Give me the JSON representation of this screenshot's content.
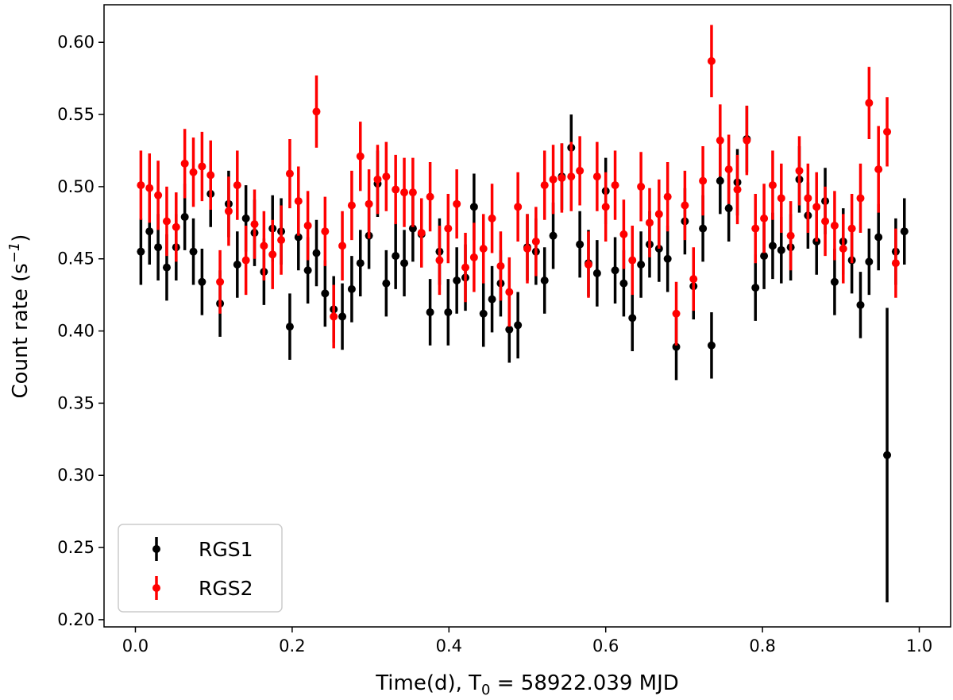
{
  "chart_data": {
    "type": "scatter",
    "title": "",
    "xlabel_text": "Time(d), T",
    "xlabel_subscript": "0",
    "xlabel_value": " = 58922.039 MJD",
    "ylabel_text": "Count rate  (s",
    "ylabel_superscript": "−1",
    "ylabel_close": ")",
    "xlim": [
      -0.04,
      1.04
    ],
    "ylim": [
      0.195,
      0.626
    ],
    "xticks": [
      0.0,
      0.2,
      0.4,
      0.6,
      0.8,
      1.0
    ],
    "xtick_labels": [
      "0.0",
      "0.2",
      "0.4",
      "0.6",
      "0.8",
      "1.0"
    ],
    "yticks": [
      0.2,
      0.25,
      0.3,
      0.35,
      0.4,
      0.45,
      0.5,
      0.55,
      0.6
    ],
    "ytick_labels": [
      "0.20",
      "0.25",
      "0.30",
      "0.35",
      "0.40",
      "0.45",
      "0.50",
      "0.55",
      "0.60"
    ],
    "grid": false,
    "legend_position": "lower-left",
    "series": [
      {
        "name": "RGS1",
        "color": "#000000",
        "x": [
          0.007,
          0.018,
          0.029,
          0.04,
          0.052,
          0.063,
          0.074,
          0.085,
          0.096,
          0.108,
          0.119,
          0.13,
          0.141,
          0.152,
          0.164,
          0.175,
          0.186,
          0.197,
          0.208,
          0.22,
          0.231,
          0.242,
          0.253,
          0.264,
          0.276,
          0.287,
          0.298,
          0.309,
          0.32,
          0.332,
          0.343,
          0.354,
          0.365,
          0.376,
          0.388,
          0.399,
          0.41,
          0.421,
          0.432,
          0.444,
          0.455,
          0.466,
          0.477,
          0.488,
          0.5,
          0.511,
          0.522,
          0.533,
          0.544,
          0.556,
          0.567,
          0.578,
          0.589,
          0.6,
          0.612,
          0.623,
          0.634,
          0.645,
          0.656,
          0.668,
          0.679,
          0.69,
          0.701,
          0.712,
          0.724,
          0.735,
          0.746,
          0.757,
          0.768,
          0.78,
          0.791,
          0.802,
          0.813,
          0.824,
          0.836,
          0.847,
          0.858,
          0.869,
          0.88,
          0.892,
          0.903,
          0.914,
          0.925,
          0.936,
          0.948,
          0.959,
          0.97,
          0.981
        ],
        "y": [
          0.455,
          0.469,
          0.458,
          0.444,
          0.458,
          0.479,
          0.455,
          0.434,
          0.495,
          0.419,
          0.488,
          0.446,
          0.478,
          0.468,
          0.441,
          0.471,
          0.469,
          0.403,
          0.465,
          0.442,
          0.454,
          0.426,
          0.415,
          0.41,
          0.429,
          0.447,
          0.466,
          0.502,
          0.433,
          0.452,
          0.447,
          0.471,
          0.467,
          0.413,
          0.455,
          0.413,
          0.435,
          0.437,
          0.486,
          0.412,
          0.422,
          0.433,
          0.401,
          0.404,
          0.458,
          0.455,
          0.435,
          0.466,
          0.507,
          0.527,
          0.46,
          0.447,
          0.44,
          0.497,
          0.442,
          0.433,
          0.409,
          0.446,
          0.46,
          0.457,
          0.45,
          0.389,
          0.476,
          0.431,
          0.471,
          0.39,
          0.504,
          0.485,
          0.503,
          0.533,
          0.43,
          0.452,
          0.459,
          0.456,
          0.458,
          0.505,
          0.48,
          0.462,
          0.49,
          0.434,
          0.462,
          0.449,
          0.418,
          0.448,
          0.465,
          0.314,
          0.455,
          0.469
        ],
        "yerr": [
          0.023,
          0.023,
          0.023,
          0.023,
          0.023,
          0.023,
          0.023,
          0.023,
          0.023,
          0.023,
          0.023,
          0.023,
          0.023,
          0.023,
          0.023,
          0.023,
          0.023,
          0.023,
          0.023,
          0.023,
          0.023,
          0.023,
          0.023,
          0.023,
          0.023,
          0.023,
          0.023,
          0.023,
          0.023,
          0.023,
          0.023,
          0.023,
          0.023,
          0.023,
          0.023,
          0.023,
          0.023,
          0.023,
          0.023,
          0.023,
          0.023,
          0.023,
          0.023,
          0.023,
          0.023,
          0.023,
          0.023,
          0.023,
          0.023,
          0.023,
          0.023,
          0.023,
          0.023,
          0.023,
          0.023,
          0.023,
          0.023,
          0.023,
          0.023,
          0.023,
          0.023,
          0.023,
          0.023,
          0.023,
          0.023,
          0.023,
          0.023,
          0.023,
          0.023,
          0.023,
          0.023,
          0.023,
          0.023,
          0.023,
          0.023,
          0.023,
          0.023,
          0.023,
          0.023,
          0.023,
          0.023,
          0.023,
          0.023,
          0.023,
          0.023,
          0.102,
          0.023,
          0.023
        ]
      },
      {
        "name": "RGS2",
        "color": "#ff0000",
        "x": [
          0.007,
          0.018,
          0.029,
          0.04,
          0.052,
          0.063,
          0.074,
          0.085,
          0.096,
          0.108,
          0.119,
          0.13,
          0.141,
          0.152,
          0.164,
          0.175,
          0.186,
          0.197,
          0.208,
          0.22,
          0.231,
          0.242,
          0.253,
          0.264,
          0.276,
          0.287,
          0.298,
          0.309,
          0.32,
          0.332,
          0.343,
          0.354,
          0.365,
          0.376,
          0.388,
          0.399,
          0.41,
          0.421,
          0.432,
          0.444,
          0.455,
          0.466,
          0.477,
          0.488,
          0.5,
          0.511,
          0.522,
          0.533,
          0.544,
          0.556,
          0.567,
          0.578,
          0.589,
          0.6,
          0.612,
          0.623,
          0.634,
          0.645,
          0.656,
          0.668,
          0.679,
          0.69,
          0.701,
          0.712,
          0.724,
          0.735,
          0.746,
          0.757,
          0.768,
          0.78,
          0.791,
          0.802,
          0.813,
          0.824,
          0.836,
          0.847,
          0.858,
          0.869,
          0.88,
          0.892,
          0.903,
          0.914,
          0.925,
          0.936,
          0.948,
          0.959,
          0.97
        ],
        "y": [
          0.501,
          0.499,
          0.494,
          0.476,
          0.472,
          0.516,
          0.51,
          0.514,
          0.508,
          0.434,
          0.483,
          0.501,
          0.449,
          0.474,
          0.459,
          0.453,
          0.463,
          0.509,
          0.49,
          0.473,
          0.552,
          0.469,
          0.41,
          0.459,
          0.487,
          0.521,
          0.488,
          0.505,
          0.507,
          0.498,
          0.496,
          0.496,
          0.468,
          0.493,
          0.449,
          0.471,
          0.488,
          0.444,
          0.451,
          0.457,
          0.478,
          0.445,
          0.427,
          0.486,
          0.457,
          0.462,
          0.501,
          0.505,
          0.506,
          0.507,
          0.511,
          0.446,
          0.507,
          0.486,
          0.501,
          0.467,
          0.449,
          0.5,
          0.475,
          0.481,
          0.493,
          0.412,
          0.487,
          0.436,
          0.504,
          0.587,
          0.532,
          0.512,
          0.498,
          0.532,
          0.471,
          0.478,
          0.501,
          0.492,
          0.466,
          0.511,
          0.492,
          0.486,
          0.476,
          0.473,
          0.457,
          0.471,
          0.492,
          0.558,
          0.512,
          0.538,
          0.447
        ],
        "yerr": [
          0.024,
          0.024,
          0.024,
          0.024,
          0.024,
          0.024,
          0.024,
          0.024,
          0.024,
          0.022,
          0.024,
          0.024,
          0.024,
          0.024,
          0.024,
          0.024,
          0.024,
          0.024,
          0.024,
          0.024,
          0.025,
          0.024,
          0.022,
          0.024,
          0.024,
          0.024,
          0.024,
          0.024,
          0.024,
          0.024,
          0.024,
          0.024,
          0.024,
          0.024,
          0.024,
          0.024,
          0.024,
          0.024,
          0.024,
          0.024,
          0.024,
          0.024,
          0.024,
          0.024,
          0.024,
          0.024,
          0.024,
          0.024,
          0.024,
          0.024,
          0.024,
          0.023,
          0.024,
          0.024,
          0.024,
          0.024,
          0.024,
          0.024,
          0.024,
          0.024,
          0.024,
          0.022,
          0.024,
          0.022,
          0.024,
          0.025,
          0.025,
          0.024,
          0.024,
          0.024,
          0.024,
          0.024,
          0.024,
          0.024,
          0.024,
          0.024,
          0.024,
          0.024,
          0.024,
          0.024,
          0.024,
          0.024,
          0.024,
          0.025,
          0.03,
          0.024,
          0.024
        ]
      }
    ],
    "legend": {
      "entries": [
        "RGS1",
        "RGS2"
      ]
    }
  }
}
